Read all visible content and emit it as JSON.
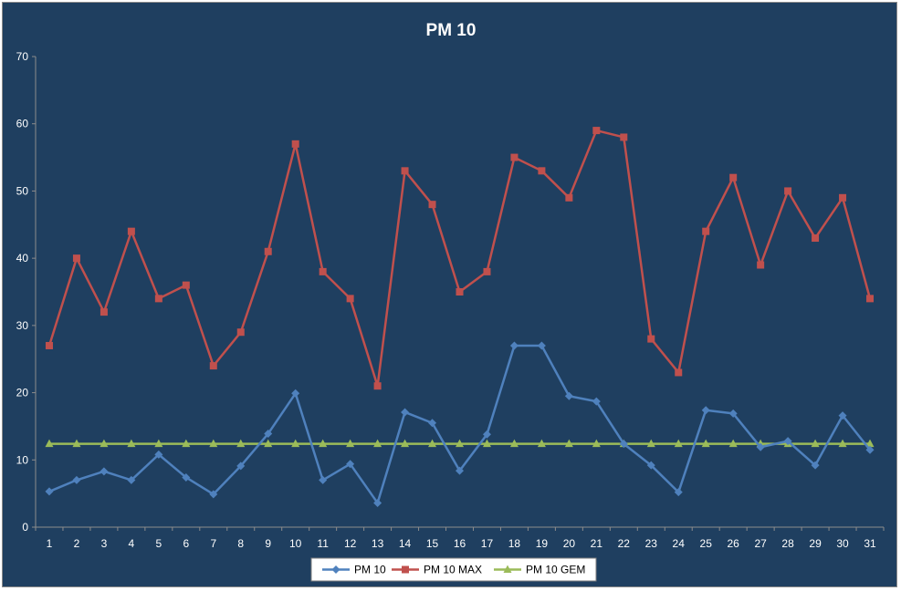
{
  "chart_data": {
    "type": "line",
    "title": "PM 10",
    "xlabel": "",
    "ylabel": "",
    "ylim": [
      0,
      70
    ],
    "yticks": [
      0,
      10,
      20,
      30,
      40,
      50,
      60,
      70
    ],
    "grid": false,
    "legend_position": "bottom",
    "categories": [
      "1",
      "2",
      "3",
      "4",
      "5",
      "6",
      "7",
      "8",
      "9",
      "10",
      "11",
      "12",
      "13",
      "14",
      "15",
      "16",
      "17",
      "18",
      "19",
      "20",
      "21",
      "22",
      "23",
      "24",
      "25",
      "26",
      "27",
      "28",
      "29",
      "30",
      "31"
    ],
    "series": [
      {
        "name": "PM 10",
        "color": "#4f81bd",
        "marker": "diamond",
        "values": [
          5.3,
          7,
          8.3,
          7,
          10.8,
          7.4,
          4.9,
          9.1,
          13.9,
          19.9,
          7,
          9.4,
          3.6,
          17.1,
          15.5,
          8.4,
          13.8,
          27,
          27,
          19.5,
          18.7,
          12.4,
          9.2,
          5.2,
          17.4,
          16.9,
          11.9,
          12.8,
          9.2,
          16.6,
          11.5
        ]
      },
      {
        "name": "PM 10 MAX",
        "color": "#c0504d",
        "marker": "square",
        "values": [
          27,
          40,
          32,
          44,
          34,
          36,
          24,
          29,
          41,
          57,
          38,
          34,
          21,
          53,
          48,
          35,
          38,
          55,
          53,
          49,
          59,
          58,
          28,
          23,
          44,
          52,
          39,
          50,
          43,
          49,
          34
        ]
      },
      {
        "name": "PM 10 GEM",
        "color": "#9bbb59",
        "marker": "triangle",
        "values": [
          12.4,
          12.4,
          12.4,
          12.4,
          12.4,
          12.4,
          12.4,
          12.4,
          12.4,
          12.4,
          12.4,
          12.4,
          12.4,
          12.4,
          12.4,
          12.4,
          12.4,
          12.4,
          12.4,
          12.4,
          12.4,
          12.4,
          12.4,
          12.4,
          12.4,
          12.4,
          12.4,
          12.4,
          12.4,
          12.4,
          12.4
        ]
      }
    ]
  }
}
